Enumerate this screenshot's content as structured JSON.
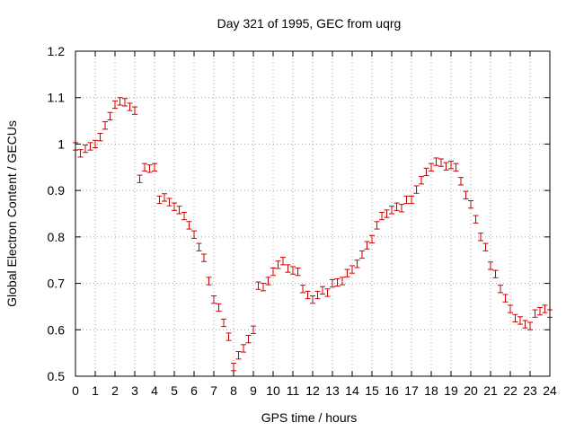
{
  "chart_data": {
    "type": "scatter",
    "title": "Day 321 of 1995, GEC from uqrg",
    "xlabel": "GPS time / hours",
    "ylabel": "Global Electron Content / GECUs",
    "xlim": [
      0,
      24
    ],
    "ylim": [
      0.5,
      1.2
    ],
    "xticks": [
      0,
      1,
      2,
      3,
      4,
      5,
      6,
      7,
      8,
      9,
      10,
      11,
      12,
      13,
      14,
      15,
      16,
      17,
      18,
      19,
      20,
      21,
      22,
      23,
      24
    ],
    "yticks": [
      0.5,
      0.6,
      0.7,
      0.8,
      0.9,
      1,
      1.1,
      1.2
    ],
    "ytick_labels": [
      "0.5",
      "0.6",
      "0.7",
      "0.8",
      "0.9",
      "1",
      "1.1",
      "1.2"
    ],
    "grid": true,
    "series_color": "#cc0000",
    "error": 0.008,
    "points": [
      [
        0.0,
        0.995
      ],
      [
        0.25,
        0.98
      ],
      [
        0.5,
        0.99
      ],
      [
        0.75,
        0.995
      ],
      [
        1.0,
        1.0
      ],
      [
        1.25,
        1.015
      ],
      [
        1.5,
        1.04
      ],
      [
        1.75,
        1.06
      ],
      [
        2.0,
        1.085
      ],
      [
        2.25,
        1.092
      ],
      [
        2.5,
        1.09
      ],
      [
        2.75,
        1.08
      ],
      [
        3.0,
        1.072
      ],
      [
        3.25,
        0.925
      ],
      [
        3.5,
        0.95
      ],
      [
        3.75,
        0.947
      ],
      [
        4.0,
        0.95
      ],
      [
        4.25,
        0.88
      ],
      [
        4.5,
        0.885
      ],
      [
        4.75,
        0.875
      ],
      [
        5.0,
        0.865
      ],
      [
        5.25,
        0.858
      ],
      [
        5.5,
        0.845
      ],
      [
        5.75,
        0.825
      ],
      [
        6.0,
        0.805
      ],
      [
        6.25,
        0.778
      ],
      [
        6.5,
        0.755
      ],
      [
        6.75,
        0.705
      ],
      [
        7.0,
        0.665
      ],
      [
        7.25,
        0.648
      ],
      [
        7.5,
        0.615
      ],
      [
        7.75,
        0.585
      ],
      [
        8.0,
        0.52
      ],
      [
        8.25,
        0.545
      ],
      [
        8.5,
        0.56
      ],
      [
        8.75,
        0.58
      ],
      [
        9.0,
        0.6
      ],
      [
        9.25,
        0.695
      ],
      [
        9.5,
        0.692
      ],
      [
        9.75,
        0.705
      ],
      [
        10.0,
        0.725
      ],
      [
        10.25,
        0.74
      ],
      [
        10.5,
        0.748
      ],
      [
        10.75,
        0.732
      ],
      [
        11.0,
        0.728
      ],
      [
        11.25,
        0.725
      ],
      [
        11.5,
        0.688
      ],
      [
        11.75,
        0.675
      ],
      [
        12.0,
        0.665
      ],
      [
        12.25,
        0.675
      ],
      [
        12.5,
        0.685
      ],
      [
        12.75,
        0.68
      ],
      [
        13.0,
        0.7
      ],
      [
        13.25,
        0.702
      ],
      [
        13.5,
        0.705
      ],
      [
        13.75,
        0.722
      ],
      [
        14.0,
        0.73
      ],
      [
        14.25,
        0.742
      ],
      [
        14.5,
        0.762
      ],
      [
        14.75,
        0.782
      ],
      [
        15.0,
        0.795
      ],
      [
        15.25,
        0.825
      ],
      [
        15.5,
        0.845
      ],
      [
        15.75,
        0.85
      ],
      [
        16.0,
        0.858
      ],
      [
        16.25,
        0.865
      ],
      [
        16.5,
        0.862
      ],
      [
        16.75,
        0.88
      ],
      [
        17.0,
        0.88
      ],
      [
        17.25,
        0.902
      ],
      [
        17.5,
        0.922
      ],
      [
        17.75,
        0.94
      ],
      [
        18.0,
        0.95
      ],
      [
        18.25,
        0.962
      ],
      [
        18.5,
        0.96
      ],
      [
        18.75,
        0.952
      ],
      [
        19.0,
        0.955
      ],
      [
        19.25,
        0.95
      ],
      [
        19.5,
        0.92
      ],
      [
        19.75,
        0.89
      ],
      [
        20.0,
        0.87
      ],
      [
        20.25,
        0.838
      ],
      [
        20.5,
        0.8
      ],
      [
        20.75,
        0.778
      ],
      [
        21.0,
        0.738
      ],
      [
        21.25,
        0.72
      ],
      [
        21.5,
        0.688
      ],
      [
        21.75,
        0.668
      ],
      [
        22.0,
        0.645
      ],
      [
        22.25,
        0.625
      ],
      [
        22.5,
        0.62
      ],
      [
        22.75,
        0.612
      ],
      [
        23.0,
        0.608
      ],
      [
        23.25,
        0.635
      ],
      [
        23.5,
        0.64
      ],
      [
        23.75,
        0.645
      ],
      [
        24.0,
        0.635
      ]
    ]
  }
}
